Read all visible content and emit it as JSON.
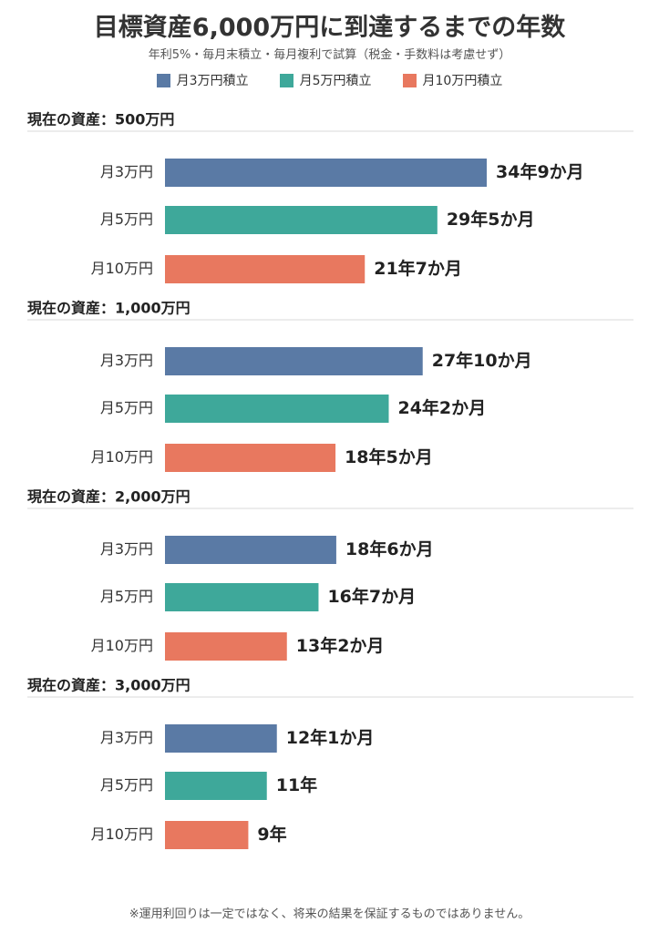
{
  "colors": {
    "monthly_30k": "#5a7aa5",
    "monthly_50k": "#3ea89a",
    "monthly_100k": "#e8785f",
    "divider": "#d8d8d8"
  },
  "chart_data": {
    "type": "bar",
    "orientation": "horizontal",
    "title": "目標資産6,000万円に到達するまでの年数",
    "subtitle": "年利5%・毎月末積立・毎月複利で試算（税金・手数料は考慮せず）",
    "legend": [
      "月3万円積立",
      "月5万円積立",
      "月10万円積立"
    ],
    "legend_placement": "top",
    "categories": [
      "月3万円",
      "月5万円",
      "月10万円"
    ],
    "grid": false,
    "xlim": [
      0,
      34.75
    ],
    "groups": [
      {
        "label": "現在の資産：500万円",
        "values": [
          34.75,
          29.417,
          21.583
        ],
        "value_labels": [
          "34年9か月",
          "29年5か月",
          "21年7か月"
        ]
      },
      {
        "label": "現在の資産：1,000万円",
        "values": [
          27.833,
          24.167,
          18.417
        ],
        "value_labels": [
          "27年10か月",
          "24年2か月",
          "18年5か月"
        ]
      },
      {
        "label": "現在の資産：2,000万円",
        "values": [
          18.5,
          16.583,
          13.167
        ],
        "value_labels": [
          "18年6か月",
          "16年7か月",
          "13年2か月"
        ]
      },
      {
        "label": "現在の資産：3,000万円",
        "values": [
          12.083,
          11,
          9
        ],
        "value_labels": [
          "12年1か月",
          "11年",
          "9年"
        ]
      }
    ]
  },
  "footnote": "※運用利回りは一定ではなく、将来の結果を保証するものではありません。"
}
